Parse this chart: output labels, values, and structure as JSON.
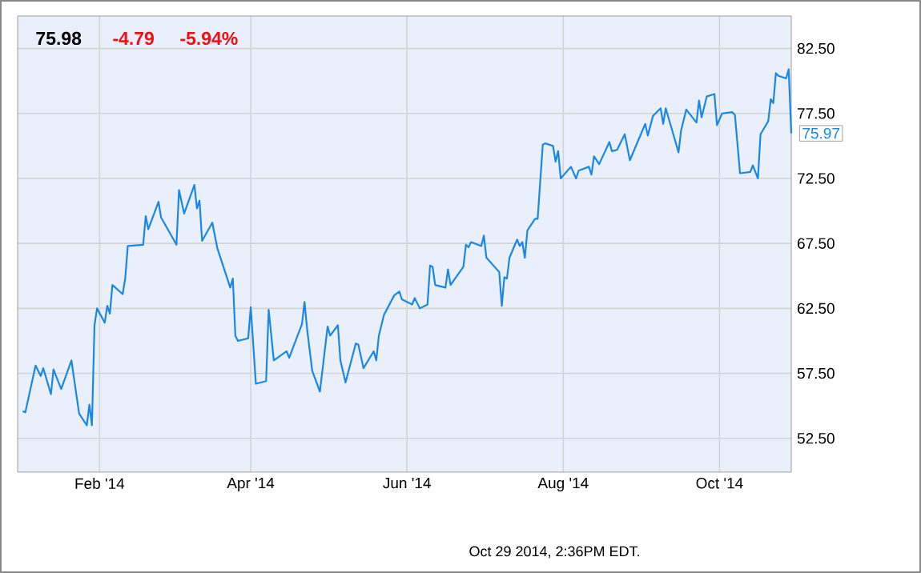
{
  "chart_data": {
    "type": "line",
    "color": "#1a87e6",
    "x": [
      "2014-01-02",
      "2014-01-03",
      "2014-01-07",
      "2014-01-09",
      "2014-01-10",
      "2014-01-13",
      "2014-01-14",
      "2014-01-17",
      "2014-01-21",
      "2014-01-24",
      "2014-01-27",
      "2014-01-28",
      "2014-01-29",
      "2014-01-30",
      "2014-01-31",
      "2014-02-03",
      "2014-02-04",
      "2014-02-05",
      "2014-02-06",
      "2014-02-10",
      "2014-02-11",
      "2014-02-12",
      "2014-02-18",
      "2014-02-19",
      "2014-02-20",
      "2014-02-24",
      "2014-02-25",
      "2014-03-03",
      "2014-03-04",
      "2014-03-06",
      "2014-03-10",
      "2014-03-11",
      "2014-03-12",
      "2014-03-13",
      "2014-03-17",
      "2014-03-19",
      "2014-03-24",
      "2014-03-25",
      "2014-03-26",
      "2014-03-27",
      "2014-03-31",
      "2014-04-01",
      "2014-04-03",
      "2014-04-07",
      "2014-04-08",
      "2014-04-10",
      "2014-04-15",
      "2014-04-16",
      "2014-04-21",
      "2014-04-22",
      "2014-04-23",
      "2014-04-25",
      "2014-04-28",
      "2014-05-01",
      "2014-05-02",
      "2014-05-05",
      "2014-05-06",
      "2014-05-08",
      "2014-05-12",
      "2014-05-13",
      "2014-05-15",
      "2014-05-19",
      "2014-05-20",
      "2014-05-21",
      "2014-05-23",
      "2014-05-27",
      "2014-05-29",
      "2014-05-30",
      "2014-06-03",
      "2014-06-04",
      "2014-06-06",
      "2014-06-09",
      "2014-06-10",
      "2014-06-11",
      "2014-06-12",
      "2014-06-16",
      "2014-06-17",
      "2014-06-18",
      "2014-06-23",
      "2014-06-24",
      "2014-06-25",
      "2014-06-26",
      "2014-06-30",
      "2014-07-01",
      "2014-07-02",
      "2014-07-07",
      "2014-07-08",
      "2014-07-09",
      "2014-07-10",
      "2014-07-11",
      "2014-07-14",
      "2014-07-15",
      "2014-07-16",
      "2014-07-17",
      "2014-07-18",
      "2014-07-21",
      "2014-07-22",
      "2014-07-24",
      "2014-07-25",
      "2014-07-28",
      "2014-07-29",
      "2014-07-30",
      "2014-07-31",
      "2014-08-04",
      "2014-08-06",
      "2014-08-07",
      "2014-08-11",
      "2014-08-12",
      "2014-08-13",
      "2014-08-15",
      "2014-08-19",
      "2014-08-20",
      "2014-08-22",
      "2014-08-25",
      "2014-08-27",
      "2014-09-02",
      "2014-09-03",
      "2014-09-05",
      "2014-09-08",
      "2014-09-09",
      "2014-09-10",
      "2014-09-15",
      "2014-09-16",
      "2014-09-18",
      "2014-09-22",
      "2014-09-23",
      "2014-09-24",
      "2014-09-26",
      "2014-09-29",
      "2014-09-30",
      "2014-10-02",
      "2014-10-06",
      "2014-10-07",
      "2014-10-09",
      "2014-10-13",
      "2014-10-14",
      "2014-10-16",
      "2014-10-17",
      "2014-10-20",
      "2014-10-21",
      "2014-10-22",
      "2014-10-23",
      "2014-10-24",
      "2014-10-27",
      "2014-10-28",
      "2014-10-29"
    ],
    "values": [
      54.6,
      54.5,
      58.1,
      57.3,
      57.9,
      55.9,
      57.8,
      56.3,
      58.5,
      54.4,
      53.5,
      55.1,
      53.5,
      61.2,
      62.5,
      61.4,
      62.7,
      62.1,
      64.3,
      63.6,
      64.8,
      67.3,
      67.4,
      69.6,
      68.6,
      70.7,
      69.5,
      67.4,
      71.6,
      69.8,
      72.0,
      70.2,
      70.8,
      67.7,
      69.1,
      67.1,
      64.1,
      64.8,
      60.4,
      60.0,
      60.2,
      62.6,
      56.7,
      56.9,
      62.4,
      58.5,
      59.2,
      58.7,
      61.3,
      63.0,
      60.9,
      57.7,
      56.1,
      61.1,
      60.4,
      61.2,
      58.5,
      56.8,
      59.8,
      59.7,
      57.9,
      59.2,
      58.5,
      60.4,
      62.0,
      63.5,
      63.8,
      63.2,
      62.8,
      63.3,
      62.5,
      62.8,
      65.8,
      65.7,
      64.3,
      64.1,
      65.5,
      64.3,
      65.7,
      67.4,
      67.2,
      67.6,
      67.3,
      68.1,
      66.4,
      65.3,
      62.7,
      64.9,
      64.8,
      66.4,
      67.8,
      67.3,
      67.6,
      66.4,
      68.5,
      69.4,
      69.4,
      75.1,
      75.2,
      75.0,
      73.8,
      74.6,
      72.5,
      73.4,
      72.5,
      73.1,
      73.4,
      72.8,
      74.2,
      73.6,
      75.3,
      74.6,
      74.7,
      75.9,
      73.9,
      76.7,
      75.8,
      77.3,
      77.9,
      76.7,
      77.9,
      74.5,
      76.2,
      77.8,
      76.8,
      78.5,
      77.2,
      78.8,
      79.0,
      76.6,
      77.5,
      77.6,
      77.4,
      72.9,
      73.0,
      73.5,
      72.5,
      75.9,
      76.9,
      78.6,
      78.3,
      80.6,
      80.4,
      80.2,
      80.9,
      75.97
    ],
    "xlim": [
      "2013-12-31",
      "2014-10-29"
    ],
    "xticks": [
      {
        "value": "2014-02-01",
        "label": "Feb '14"
      },
      {
        "value": "2014-04-01",
        "label": "Apr '14"
      },
      {
        "value": "2014-06-01",
        "label": "Jun '14"
      },
      {
        "value": "2014-08-01",
        "label": "Aug '14"
      },
      {
        "value": "2014-10-01",
        "label": "Oct '14"
      }
    ],
    "ylim": [
      49.9,
      85.0
    ],
    "yticks": [
      {
        "value": 52.5,
        "label": "52.50"
      },
      {
        "value": 57.5,
        "label": "57.50"
      },
      {
        "value": 62.5,
        "label": "62.50"
      },
      {
        "value": 67.5,
        "label": "67.50"
      },
      {
        "value": 72.5,
        "label": "72.50"
      },
      {
        "value": 77.5,
        "label": "77.50"
      },
      {
        "value": 82.5,
        "label": "82.50"
      }
    ],
    "grid": true,
    "annotations": [
      "75.98",
      "-4.79",
      "-5.94%",
      "Oct 29 2014, 2:36PM EDT.",
      {
        "text": "75.97",
        "x": "2014-10-29",
        "y": 75.97
      }
    ]
  }
}
